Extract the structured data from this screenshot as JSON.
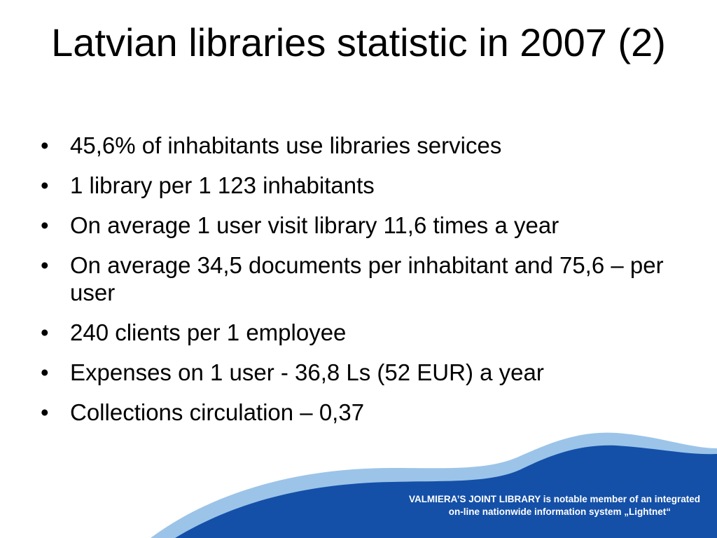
{
  "slide": {
    "title": "Latvian libraries statistic in 2007 (2)",
    "bullet_glyph": "•",
    "bullets": [
      "45,6% of inhabitants use libraries services",
      "1 library per 1 123 inhabitants",
      "On average 1 user visit library 11,6 times a year",
      "On average 34,5 documents per inhabitant and 75,6 – per user",
      "240 clients per 1 employee",
      "Expenses on 1 user - 36,8 Ls (52 EUR)  a year",
      "Collections circulation – 0,37"
    ]
  },
  "footer": {
    "line1": "VALMIERA’S JOINT LIBRARY is notable member of an integrated",
    "line2": "on-line nationwide information system „Lightnet“"
  },
  "colors": {
    "wave_dark": "#1450a8",
    "wave_light": "#9cc4e8",
    "text": "#000000",
    "footer_text": "#ffffff"
  }
}
